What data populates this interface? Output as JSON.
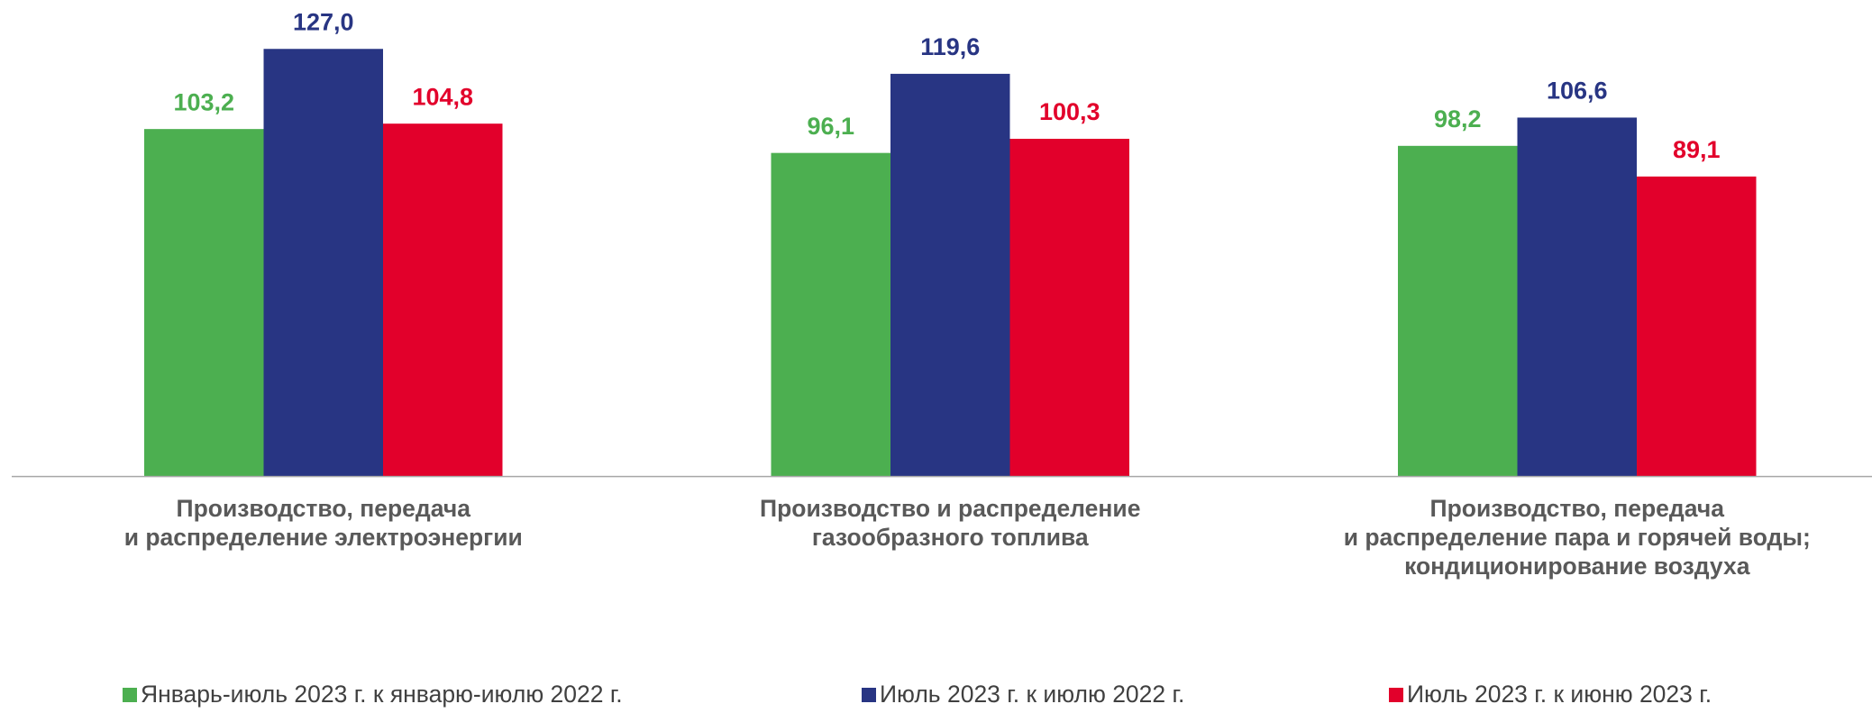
{
  "chart_data": {
    "type": "bar",
    "categories": [
      "Производство, передача\nи распределение электроэнергии",
      "Производство и распределение\nгазообразного топлива",
      "Производство, передача\nи распределение пара и горячей воды;\nкондиционирование воздуха"
    ],
    "series": [
      {
        "name": "Январь-июль 2023 г. к январю-июлю 2022 г.",
        "color": "#4caf50",
        "values": [
          103.2,
          96.1,
          98.2
        ],
        "value_labels": [
          "103,2",
          "96,1",
          "98,2"
        ]
      },
      {
        "name": "Июль 2023 г. к июлю 2022 г.",
        "color": "#283583",
        "values": [
          127.0,
          119.6,
          106.6
        ],
        "value_labels": [
          "127,0",
          "119,6",
          "106,6"
        ]
      },
      {
        "name": "Июль 2023 г. к июню 2023 г.",
        "color": "#e2002b",
        "values": [
          104.8,
          100.3,
          89.1
        ],
        "value_labels": [
          "104,8",
          "100,3",
          "89,1"
        ]
      }
    ],
    "ylim": [
      0,
      140
    ],
    "legend": "bottom"
  }
}
